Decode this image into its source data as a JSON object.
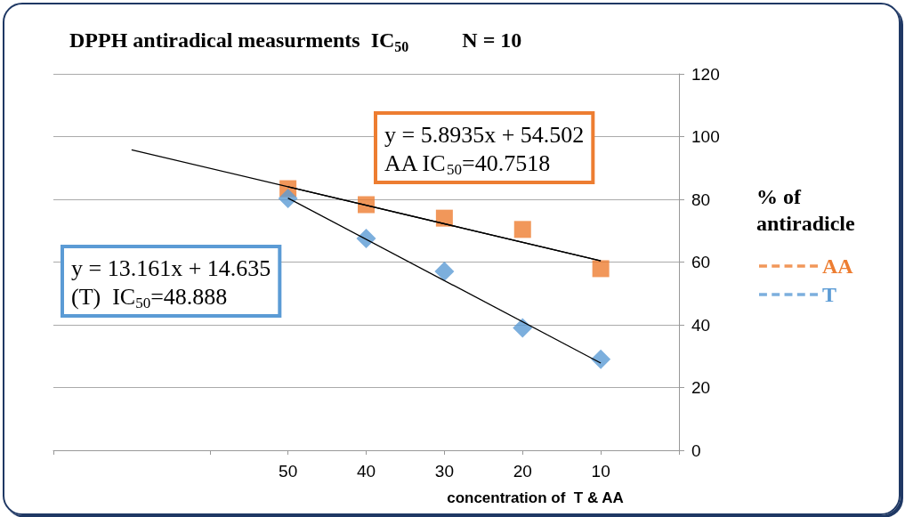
{
  "chart_data": {
    "type": "scatter",
    "title": "DPPH antiradical measurments  IC$_{50}$          N = 10",
    "xlabel": "concentration of  T & AA",
    "ylabel": "% of antiradicle",
    "x": [
      50,
      40,
      30,
      20,
      10
    ],
    "series": [
      {
        "name": "AA",
        "marker": "square",
        "color": "#ed7d31",
        "values": [
          83.4,
          78.3,
          74,
          70.4,
          57.9
        ]
      },
      {
        "name": "T",
        "marker": "diamond",
        "color": "#5b9bd5",
        "values": [
          80.3,
          67.5,
          57,
          39,
          29
        ]
      },
      {
        "type": "line",
        "marker": "none",
        "color": "#000000",
        "x": [
          70,
          10
        ],
        "values": [
          95.8,
          60.4
        ]
      },
      {
        "type": "line",
        "marker": "none",
        "color": "#000000",
        "x": [
          50,
          10
        ],
        "values": [
          84,
          60.4
        ]
      },
      {
        "type": "line",
        "marker": "none",
        "color": "#000000",
        "x": [
          50,
          10
        ],
        "values": [
          80.4,
          27.8
        ]
      }
    ],
    "annotations": [
      "y = 5.8935x + 54.502\nAA IC$_{50}$=40.7518",
      "y = 13.161x + 14.635\n(T)  IC$_{50}$=48.888"
    ],
    "xlim": [
      80,
      0
    ],
    "xticks": [
      {
        "value": 80,
        "label": null
      },
      {
        "value": 60,
        "label": null
      },
      50,
      40,
      30,
      20,
      10,
      {
        "value": 0,
        "label": null
      }
    ],
    "ylim": [
      0,
      120
    ],
    "yticks": [
      0,
      20,
      40,
      60,
      80,
      100,
      120
    ],
    "grid": "y",
    "legend": "right"
  }
}
